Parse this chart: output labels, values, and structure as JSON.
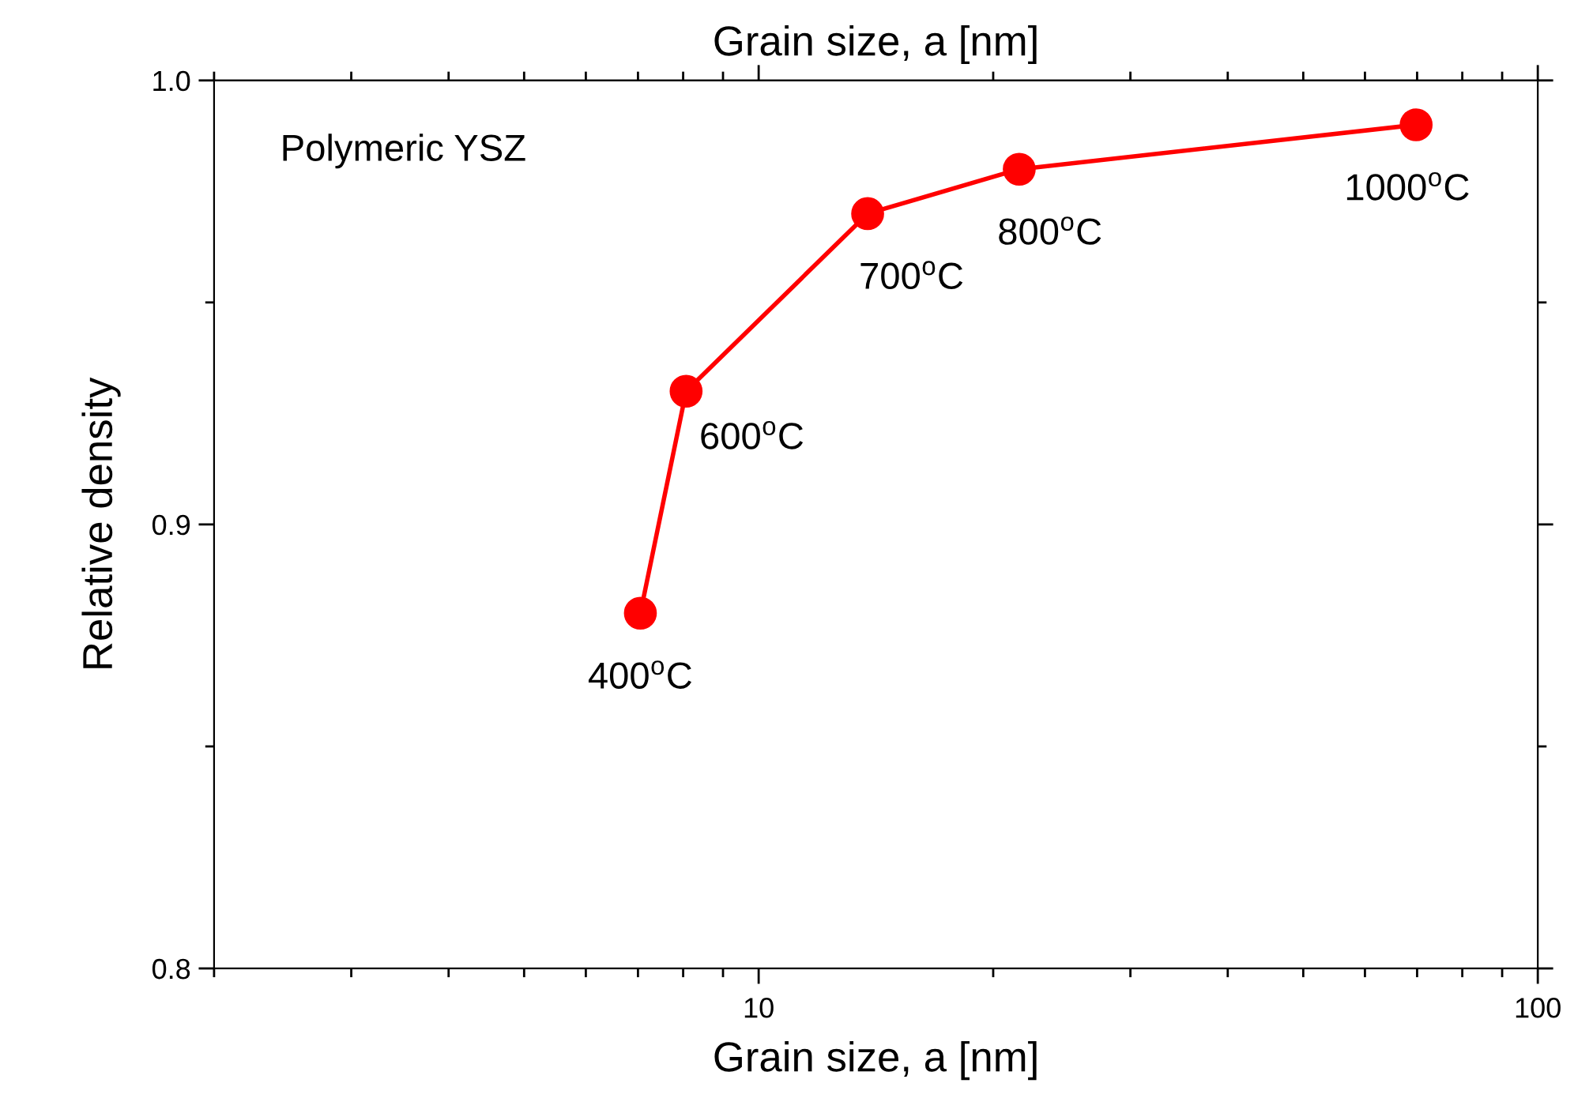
{
  "chart_data": {
    "type": "line",
    "xlabel": "Grain size, a [nm]",
    "ylabel": "Relative density",
    "x2label": "Grain size, a [nm]",
    "x": [
      7.05,
      8.07,
      13.8,
      21.6,
      69.8
    ],
    "series": [
      {
        "color": "#ff0000",
        "values": [
          0.88,
          0.93,
          0.97,
          0.98,
          0.99
        ]
      }
    ],
    "marker": "circle",
    "line_style": "solid",
    "log": "x",
    "grid": false,
    "xlim": [
      2,
      100
    ],
    "xticks": [
      {
        "value": 2,
        "label": null
      },
      {
        "value": 3,
        "label": null
      },
      {
        "value": 4,
        "label": null
      },
      {
        "value": 5,
        "label": null
      },
      {
        "value": 6,
        "label": null
      },
      {
        "value": 7,
        "label": null
      },
      {
        "value": 8,
        "label": null
      },
      {
        "value": 9,
        "label": null
      },
      10,
      {
        "value": 20,
        "label": null
      },
      {
        "value": 30,
        "label": null
      },
      {
        "value": 40,
        "label": null
      },
      {
        "value": 50,
        "label": null
      },
      {
        "value": 60,
        "label": null
      },
      {
        "value": 70,
        "label": null
      },
      {
        "value": 80,
        "label": null
      },
      {
        "value": 90,
        "label": null
      },
      100
    ],
    "ylim": [
      0.8,
      1.0
    ],
    "yticks": [
      {
        "value": 0.8,
        "label": "0.8"
      },
      {
        "value": 0.85,
        "label": null
      },
      {
        "value": 0.9,
        "label": "0.9"
      },
      {
        "value": 0.95,
        "label": null
      },
      {
        "value": 1.0,
        "label": "1.0"
      }
    ],
    "annotations": [
      "Polymeric YSZ",
      {
        "text": "400$^{o}$C",
        "x": 7.05,
        "y": 0.88
      },
      {
        "text": "600$^{o}$C",
        "x": 8.07,
        "y": 0.93
      },
      {
        "text": "700$^{o}$C",
        "x": 13.8,
        "y": 0.97
      },
      {
        "text": "800$^{o}$C",
        "x": 21.6,
        "y": 0.98
      },
      {
        "text": "1000$^{o}$C",
        "x": 69.8,
        "y": 0.99
      }
    ]
  }
}
